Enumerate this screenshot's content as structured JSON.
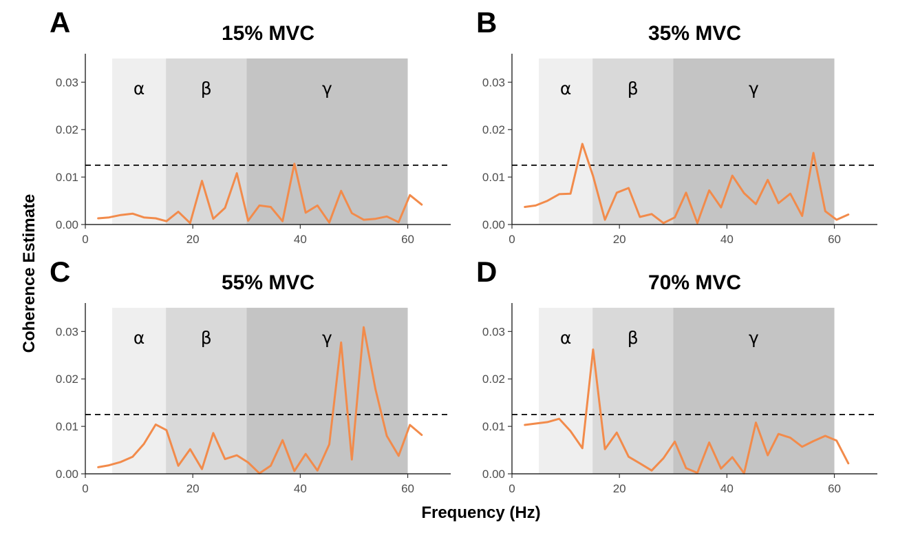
{
  "figure": {
    "xlabel": "Frequency (Hz)",
    "ylabel": "Coherence Estimate"
  },
  "colors": {
    "line": "#F28B4B",
    "band_alpha": "#efefef",
    "band_beta": "#d9d9d9",
    "band_gamma": "#c4c4c4",
    "threshold": "#000000"
  },
  "chart_data": [
    {
      "type": "line",
      "letter": "A",
      "title": "15% MVC",
      "xlim": [
        0,
        68
      ],
      "ylim": [
        0,
        0.036
      ],
      "xticks": [
        0,
        20,
        40,
        60
      ],
      "yticks": [
        0.0,
        0.01,
        0.02,
        0.03
      ],
      "xtick_labels": [
        "0",
        "20",
        "40",
        "60"
      ],
      "ytick_labels": [
        "0.00",
        "0.01",
        "0.02",
        "0.03"
      ],
      "threshold": 0.0125,
      "bands": [
        {
          "label": "α",
          "from": 5,
          "to": 15,
          "top": 0.035
        },
        {
          "label": "β",
          "from": 15,
          "to": 30,
          "top": 0.035
        },
        {
          "label": "γ",
          "from": 30,
          "to": 60,
          "top": 0.035
        }
      ],
      "x": [
        2.4,
        4.4,
        6.6,
        8.8,
        10.9,
        13.1,
        15.1,
        17.3,
        19.5,
        21.7,
        23.8,
        26.0,
        28.2,
        30.3,
        32.4,
        34.5,
        36.7,
        38.9,
        41.0,
        43.2,
        45.4,
        47.6,
        49.6,
        51.8,
        54.0,
        56.1,
        58.3,
        60.4,
        62.6
      ],
      "y": [
        0.0013,
        0.0015,
        0.002,
        0.0023,
        0.0015,
        0.0013,
        0.0007,
        0.0027,
        0.0003,
        0.0092,
        0.0012,
        0.0035,
        0.0108,
        0.0008,
        0.004,
        0.0037,
        0.0007,
        0.0128,
        0.0025,
        0.004,
        0.0004,
        0.0071,
        0.0024,
        0.001,
        0.0012,
        0.0017,
        0.0005,
        0.0062,
        0.0042
      ]
    },
    {
      "type": "line",
      "letter": "B",
      "title": "35% MVC",
      "xlim": [
        0,
        68
      ],
      "ylim": [
        0,
        0.036
      ],
      "xticks": [
        0,
        20,
        40,
        60
      ],
      "yticks": [
        0.0,
        0.01,
        0.02,
        0.03
      ],
      "xtick_labels": [
        "0",
        "20",
        "40",
        "60"
      ],
      "ytick_labels": [
        "0.00",
        "0.01",
        "0.02",
        "0.03"
      ],
      "threshold": 0.0125,
      "bands": [
        {
          "label": "α",
          "from": 5,
          "to": 15,
          "top": 0.035
        },
        {
          "label": "β",
          "from": 15,
          "to": 30,
          "top": 0.035
        },
        {
          "label": "γ",
          "from": 30,
          "to": 60,
          "top": 0.035
        }
      ],
      "x": [
        2.4,
        4.4,
        6.6,
        8.8,
        10.9,
        13.1,
        15.1,
        17.3,
        19.5,
        21.7,
        23.8,
        26.0,
        28.2,
        30.3,
        32.4,
        34.5,
        36.7,
        38.9,
        41.0,
        43.2,
        45.4,
        47.6,
        49.6,
        51.8,
        54.0,
        56.1,
        58.3,
        60.4,
        62.6
      ],
      "y": [
        0.0037,
        0.004,
        0.005,
        0.0064,
        0.0065,
        0.017,
        0.0102,
        0.001,
        0.0067,
        0.0077,
        0.0016,
        0.0022,
        0.0003,
        0.0015,
        0.0067,
        0.0003,
        0.0072,
        0.0036,
        0.0103,
        0.0066,
        0.0043,
        0.0094,
        0.0045,
        0.0065,
        0.0018,
        0.0151,
        0.0028,
        0.001,
        0.0021
      ]
    },
    {
      "type": "line",
      "letter": "C",
      "title": "55% MVC",
      "xlim": [
        0,
        68
      ],
      "ylim": [
        0,
        0.036
      ],
      "xticks": [
        0,
        20,
        40,
        60
      ],
      "yticks": [
        0.0,
        0.01,
        0.02,
        0.03
      ],
      "xtick_labels": [
        "0",
        "20",
        "40",
        "60"
      ],
      "ytick_labels": [
        "0.00",
        "0.01",
        "0.02",
        "0.03"
      ],
      "threshold": 0.0125,
      "bands": [
        {
          "label": "α",
          "from": 5,
          "to": 15,
          "top": 0.035
        },
        {
          "label": "β",
          "from": 15,
          "to": 30,
          "top": 0.035
        },
        {
          "label": "γ",
          "from": 30,
          "to": 60,
          "top": 0.035
        }
      ],
      "x": [
        2.4,
        4.4,
        6.6,
        8.8,
        10.9,
        13.1,
        15.1,
        17.3,
        19.5,
        21.7,
        23.8,
        26.0,
        28.2,
        30.3,
        32.4,
        34.5,
        36.7,
        38.9,
        41.0,
        43.2,
        45.4,
        47.6,
        49.6,
        51.8,
        54.0,
        56.1,
        58.3,
        60.4,
        62.6
      ],
      "y": [
        0.0014,
        0.0018,
        0.0025,
        0.0036,
        0.0063,
        0.0104,
        0.0092,
        0.0017,
        0.0052,
        0.001,
        0.0086,
        0.0031,
        0.0039,
        0.0024,
        0.0001,
        0.0017,
        0.0071,
        0.0006,
        0.0042,
        0.0007,
        0.0062,
        0.0277,
        0.003,
        0.0309,
        0.0178,
        0.008,
        0.0038,
        0.0103,
        0.0082
      ]
    },
    {
      "type": "line",
      "letter": "D",
      "title": "70% MVC",
      "xlim": [
        0,
        68
      ],
      "ylim": [
        0,
        0.036
      ],
      "xticks": [
        0,
        20,
        40,
        60
      ],
      "yticks": [
        0.0,
        0.01,
        0.02,
        0.03
      ],
      "xtick_labels": [
        "0",
        "20",
        "40",
        "60"
      ],
      "ytick_labels": [
        "0.00",
        "0.01",
        "0.02",
        "0.03"
      ],
      "threshold": 0.0125,
      "bands": [
        {
          "label": "α",
          "from": 5,
          "to": 15,
          "top": 0.035
        },
        {
          "label": "β",
          "from": 15,
          "to": 30,
          "top": 0.035
        },
        {
          "label": "γ",
          "from": 30,
          "to": 60,
          "top": 0.035
        }
      ],
      "x": [
        2.4,
        4.4,
        6.6,
        8.8,
        10.9,
        13.1,
        15.1,
        17.3,
        19.5,
        21.7,
        23.8,
        26.0,
        28.2,
        30.3,
        32.4,
        34.5,
        36.7,
        38.9,
        41.0,
        43.2,
        45.4,
        47.6,
        49.6,
        51.8,
        54.0,
        56.1,
        58.3,
        60.4,
        62.6
      ],
      "y": [
        0.0103,
        0.0106,
        0.0109,
        0.0116,
        0.009,
        0.0054,
        0.0262,
        0.0052,
        0.0087,
        0.0036,
        0.0022,
        0.0007,
        0.0033,
        0.0068,
        0.0012,
        0.0002,
        0.0066,
        0.0011,
        0.0035,
        0.0001,
        0.0108,
        0.0039,
        0.0084,
        0.0076,
        0.0057,
        0.0069,
        0.008,
        0.007,
        0.0022
      ]
    }
  ]
}
